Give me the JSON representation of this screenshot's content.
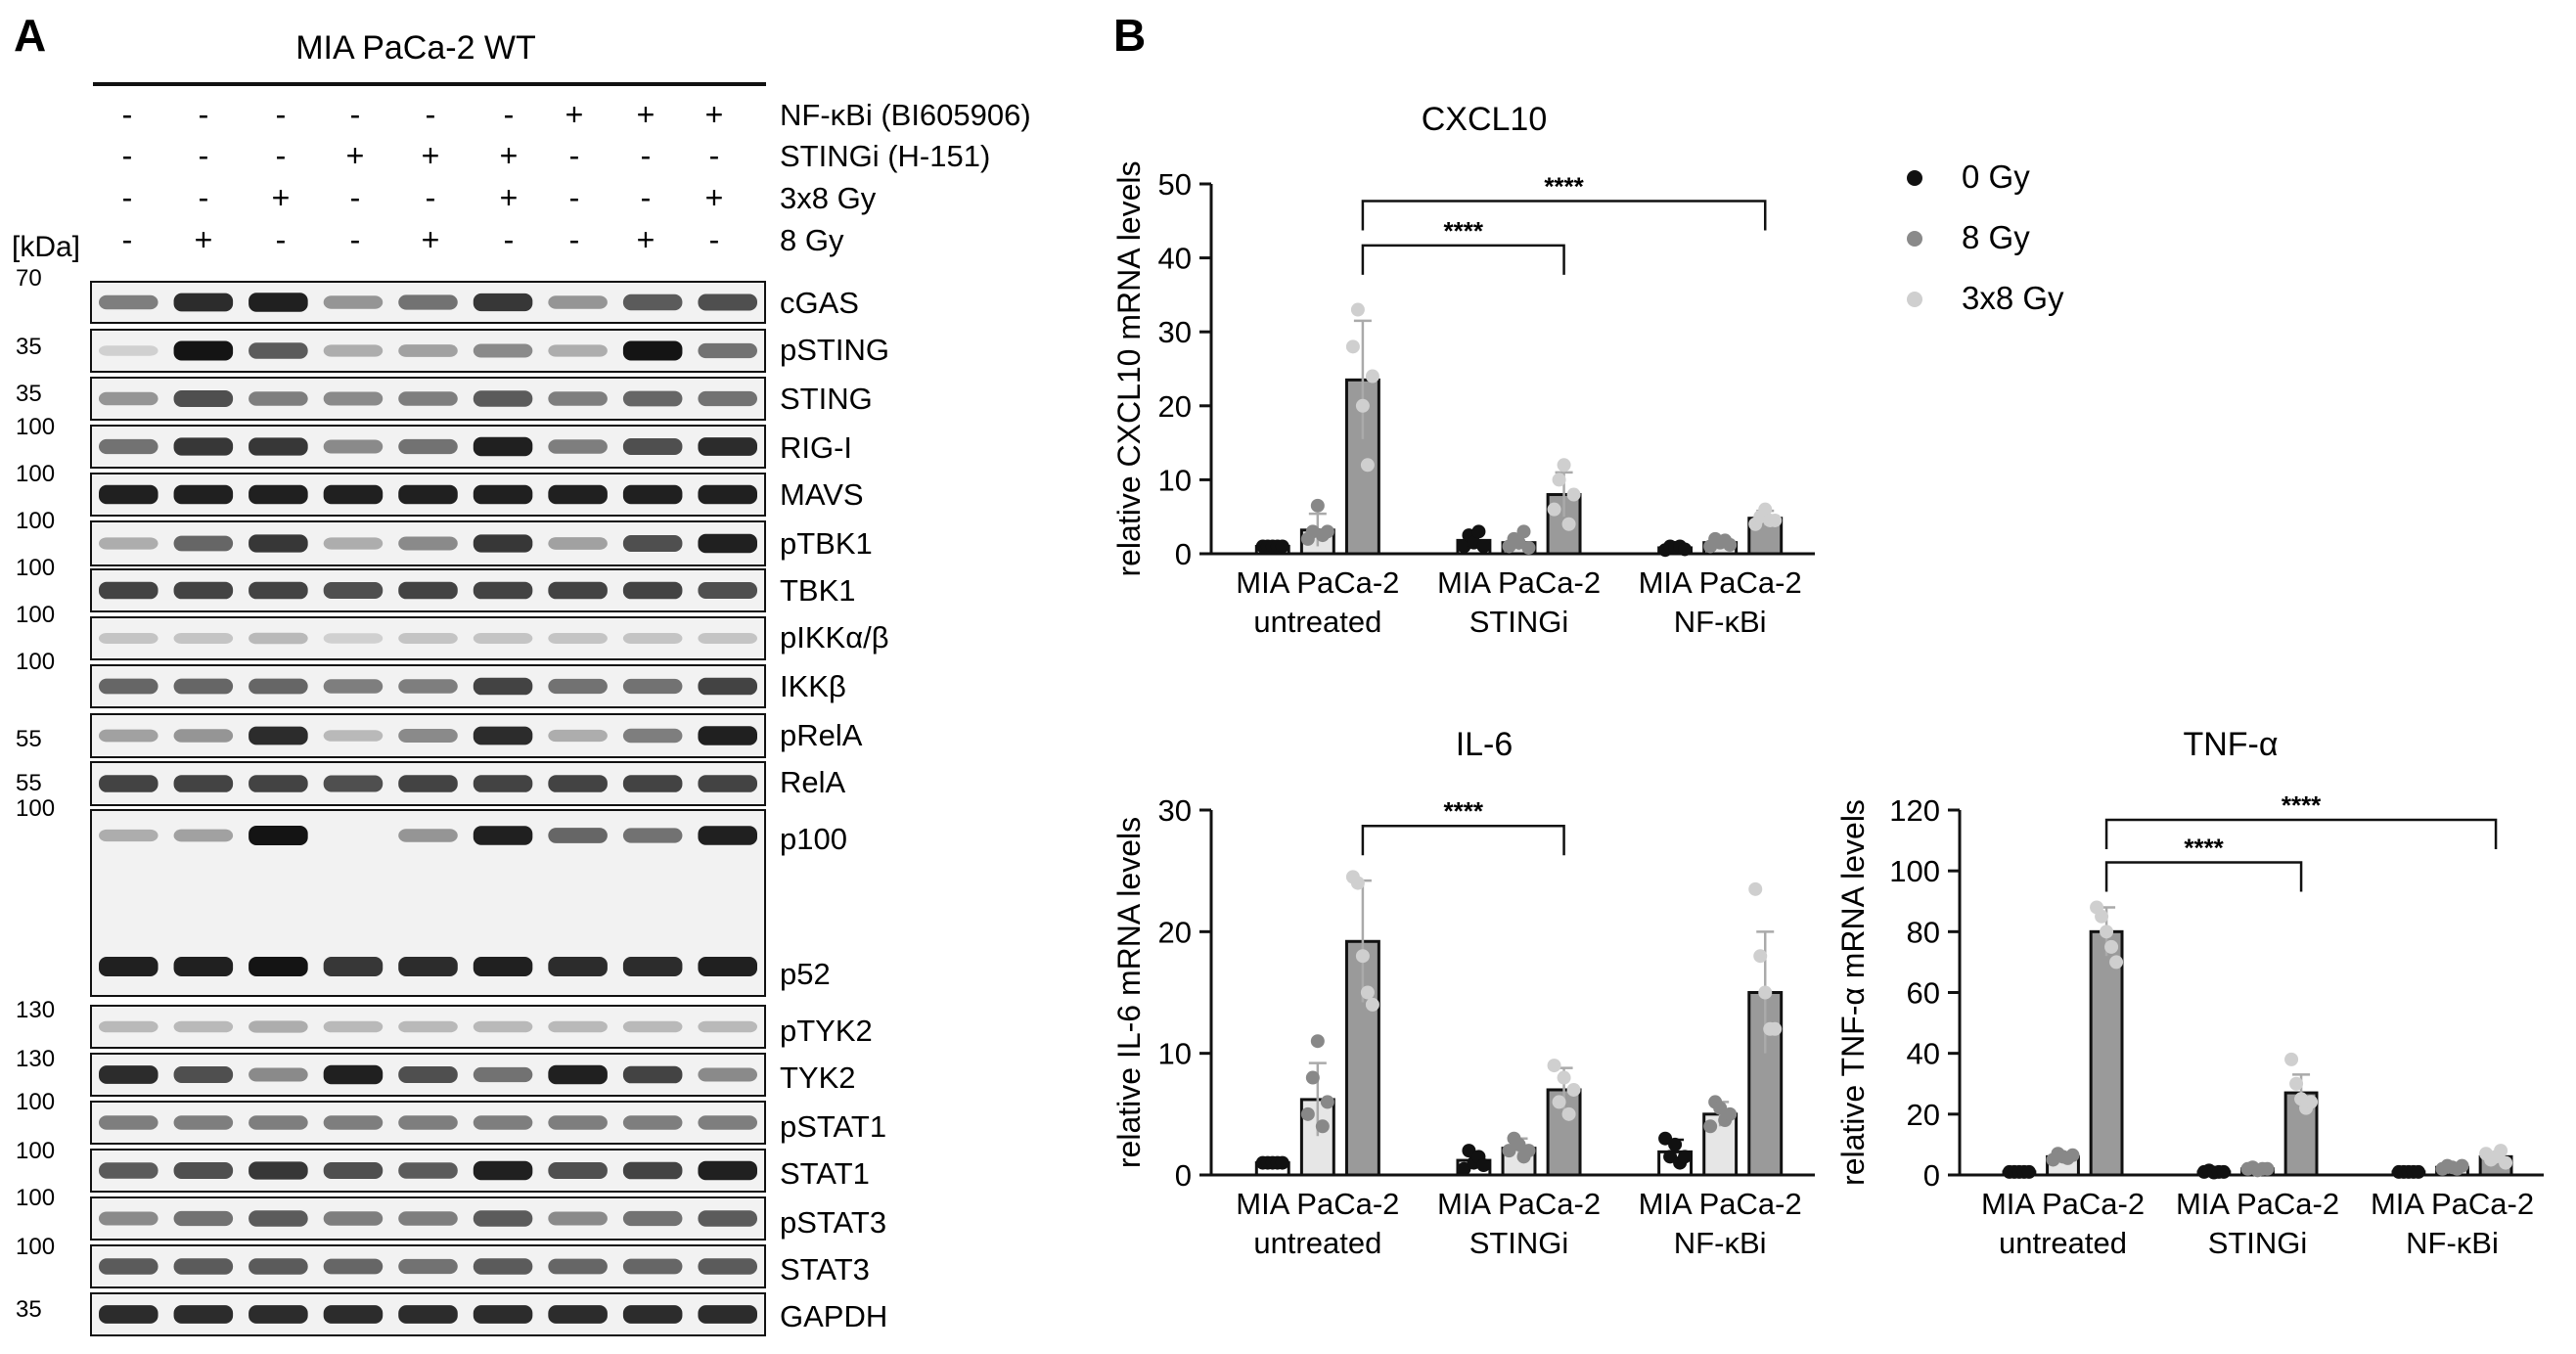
{
  "panel_a": {
    "letter": "A",
    "header": "MIA PaCa-2 WT",
    "kda_label": "[kDa]",
    "treatment_rows": [
      {
        "label": "NF-κBi (BI605906)",
        "signs": [
          "-",
          "-",
          "-",
          "-",
          "-",
          "-",
          "+",
          "+",
          "+"
        ]
      },
      {
        "label": "STINGi (H-151)",
        "signs": [
          "-",
          "-",
          "-",
          "+",
          "+",
          "+",
          "-",
          "-",
          "-"
        ]
      },
      {
        "label": "3x8 Gy",
        "signs": [
          "-",
          "-",
          "+",
          "-",
          "-",
          "+",
          "-",
          "-",
          "+"
        ]
      },
      {
        "label": "8 Gy",
        "signs": [
          "-",
          "+",
          "-",
          "-",
          "+",
          "-",
          "-",
          "+",
          "-"
        ]
      }
    ],
    "blots": [
      {
        "marker": "70",
        "labels": [
          "cGAS"
        ]
      },
      {
        "marker": "35",
        "labels": [
          "pSTING"
        ]
      },
      {
        "marker": "35",
        "labels": [
          "STING"
        ]
      },
      {
        "marker": "100",
        "labels": [
          "RIG-I"
        ]
      },
      {
        "marker": "100",
        "labels": [
          "MAVS"
        ]
      },
      {
        "marker": "100",
        "labels": [
          "pTBK1"
        ]
      },
      {
        "marker": "100",
        "labels": [
          "TBK1"
        ]
      },
      {
        "marker": "100",
        "labels": [
          "pIKKα/β"
        ]
      },
      {
        "marker": "100",
        "labels": [
          "IKKβ"
        ]
      },
      {
        "marker": "55",
        "labels": [
          "pRelA"
        ]
      },
      {
        "marker": "55",
        "labels": [
          "RelA"
        ]
      },
      {
        "marker": "100",
        "labels": [
          "p100",
          "p52"
        ]
      },
      {
        "marker": "130",
        "labels": [
          "pTYK2"
        ]
      },
      {
        "marker": "130",
        "labels": [
          "TYK2"
        ]
      },
      {
        "marker": "100",
        "labels": [
          "pSTAT1"
        ]
      },
      {
        "marker": "100",
        "labels": [
          "STAT1"
        ]
      },
      {
        "marker": "100",
        "labels": [
          "pSTAT3"
        ]
      },
      {
        "marker": "100",
        "labels": [
          "STAT3"
        ]
      },
      {
        "marker": "35",
        "labels": [
          "GAPDH"
        ]
      }
    ]
  },
  "panel_b": {
    "letter": "B",
    "legend": [
      {
        "label": "0 Gy",
        "color": "#111111"
      },
      {
        "label": "8 Gy",
        "color": "#8a8a8a"
      },
      {
        "label": "3x8 Gy",
        "color": "#cfcfcf"
      }
    ],
    "significance_label": "****"
  },
  "chart_data": [
    {
      "type": "bar",
      "title": "CXCL10",
      "ylabel": "relative CXCL10 mRNA levels",
      "ylim": [
        0,
        50
      ],
      "yticks": [
        0,
        10,
        20,
        30,
        40,
        50
      ],
      "group_labels": [
        [
          "MIA PaCa-2",
          "untreated"
        ],
        [
          "MIA PaCa-2",
          "STINGi"
        ],
        [
          "MIA PaCa-2",
          "NF-κBi"
        ]
      ],
      "series": [
        {
          "name": "0 Gy",
          "values": [
            1.0,
            1.8,
            0.8
          ],
          "errors": [
            0.1,
            1.0,
            0.3
          ],
          "points": [
            [
              1,
              1,
              1,
              1,
              1
            ],
            [
              1,
              2.5,
              1.5,
              3,
              1
            ],
            [
              0.5,
              1,
              0.8,
              1,
              0.6
            ]
          ]
        },
        {
          "name": "8 Gy",
          "values": [
            3.2,
            1.5,
            1.5
          ],
          "errors": [
            2.2,
            1.0,
            0.6
          ],
          "points": [
            [
              2,
              3,
              6.5,
              2.5,
              3
            ],
            [
              1,
              2,
              1.5,
              3,
              0.8
            ],
            [
              1,
              2,
              1.5,
              1.8,
              1.2
            ]
          ]
        },
        {
          "name": "3x8 Gy",
          "values": [
            23.5,
            8.0,
            4.8
          ],
          "errors": [
            8.0,
            3.0,
            1.0
          ],
          "points": [
            [
              28,
              33,
              20,
              12,
              24
            ],
            [
              6,
              10,
              12,
              4,
              8
            ],
            [
              4,
              5,
              6,
              4.5,
              4.5
            ]
          ]
        }
      ],
      "significance": [
        {
          "from_group": 0,
          "to_group": 1,
          "label": "****",
          "y": 43
        },
        {
          "from_group": 0,
          "to_group": 2,
          "label": "****",
          "y": 49
        }
      ]
    },
    {
      "type": "bar",
      "title": "IL-6",
      "ylabel": "relative IL-6 mRNA levels",
      "ylim": [
        0,
        30
      ],
      "yticks": [
        0,
        10,
        20,
        30
      ],
      "group_labels": [
        [
          "MIA PaCa-2",
          "untreated"
        ],
        [
          "MIA PaCa-2",
          "STINGi"
        ],
        [
          "MIA PaCa-2",
          "NF-κBi"
        ]
      ],
      "series": [
        {
          "name": "0 Gy",
          "values": [
            1.0,
            1.2,
            1.9
          ],
          "errors": [
            0.1,
            0.6,
            1.0
          ],
          "points": [
            [
              1,
              1,
              1,
              1,
              1
            ],
            [
              0.5,
              2,
              1,
              1.5,
              0.8
            ],
            [
              3,
              1.5,
              2.5,
              1,
              1.5
            ]
          ]
        },
        {
          "name": "8 Gy",
          "values": [
            6.2,
            2.2,
            5.0
          ],
          "errors": [
            3.0,
            0.8,
            1.0
          ],
          "points": [
            [
              5,
              8,
              11,
              4,
              6
            ],
            [
              2,
              3,
              2.5,
              1.5,
              2
            ],
            [
              4,
              6,
              5.5,
              4.5,
              5
            ]
          ]
        },
        {
          "name": "3x8 Gy",
          "values": [
            19.2,
            7.0,
            15.0
          ],
          "errors": [
            5.0,
            1.8,
            5.0
          ],
          "points": [
            [
              24.5,
              24,
              18,
              15,
              14
            ],
            [
              9,
              6,
              8,
              5,
              7
            ],
            [
              23.5,
              18,
              15,
              12,
              12
            ]
          ]
        }
      ],
      "significance": [
        {
          "from_group": 0,
          "to_group": 1,
          "label": "****",
          "y": 29.5
        }
      ]
    },
    {
      "type": "bar",
      "title": "TNF-α",
      "ylabel": "relative TNF-α mRNA levels",
      "ylim": [
        0,
        120
      ],
      "yticks": [
        0,
        20,
        40,
        60,
        80,
        100,
        120
      ],
      "group_labels": [
        [
          "MIA PaCa-2",
          "untreated"
        ],
        [
          "MIA PaCa-2",
          "STINGi"
        ],
        [
          "MIA PaCa-2",
          "NF-κBi"
        ]
      ],
      "series": [
        {
          "name": "0 Gy",
          "values": [
            1.0,
            1.0,
            1.0
          ],
          "errors": [
            0.1,
            0.3,
            0.2
          ],
          "points": [
            [
              1,
              1,
              1,
              1,
              1
            ],
            [
              1,
              1.5,
              0.8,
              1,
              1
            ],
            [
              1,
              1,
              1,
              1,
              1
            ]
          ]
        },
        {
          "name": "8 Gy",
          "values": [
            6.0,
            2.0,
            2.5
          ],
          "errors": [
            1.5,
            0.5,
            0.6
          ],
          "points": [
            [
              5,
              7,
              6,
              5.5,
              6.5
            ],
            [
              2,
              2.5,
              1.5,
              2,
              2
            ],
            [
              2,
              3,
              2.5,
              2,
              3
            ]
          ]
        },
        {
          "name": "3x8 Gy",
          "values": [
            80.0,
            27.0,
            6.0
          ],
          "errors": [
            8.0,
            6.0,
            1.5
          ],
          "points": [
            [
              88,
              85,
              80,
              75,
              70
            ],
            [
              38,
              30,
              25,
              22,
              24
            ],
            [
              7,
              5,
              6,
              8,
              4
            ]
          ]
        }
      ],
      "significance": [
        {
          "from_group": 0,
          "to_group": 1,
          "label": "****",
          "y": 106
        },
        {
          "from_group": 0,
          "to_group": 2,
          "label": "****",
          "y": 120
        }
      ]
    }
  ]
}
